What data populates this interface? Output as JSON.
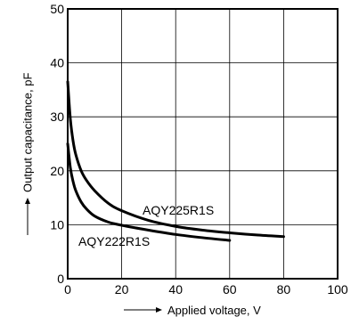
{
  "chart_data": {
    "type": "line",
    "xlabel": "Applied voltage, V",
    "ylabel": "Output capacitance, pF",
    "xlim": [
      0,
      100
    ],
    "ylim": [
      0,
      50
    ],
    "xticks": [
      0,
      20,
      40,
      60,
      80,
      100
    ],
    "yticks": [
      0,
      10,
      20,
      30,
      40,
      50
    ],
    "grid": true,
    "series": [
      {
        "name": "AQY225R1S",
        "x": [
          0,
          1,
          2,
          3,
          5,
          7,
          10,
          15,
          20,
          30,
          40,
          50,
          60,
          70,
          80
        ],
        "y": [
          36.5,
          29.5,
          25.5,
          23,
          20,
          18.2,
          16.3,
          14,
          12.6,
          10.8,
          9.7,
          9.0,
          8.5,
          8.1,
          7.8
        ]
      },
      {
        "name": "AQY222R1S",
        "x": [
          0,
          1,
          2,
          3,
          5,
          7,
          10,
          15,
          20,
          30,
          40,
          50,
          60
        ],
        "y": [
          25,
          20.5,
          18,
          16.3,
          14.2,
          12.9,
          11.6,
          10.5,
          9.9,
          9.0,
          8.2,
          7.6,
          7.1
        ]
      }
    ]
  }
}
